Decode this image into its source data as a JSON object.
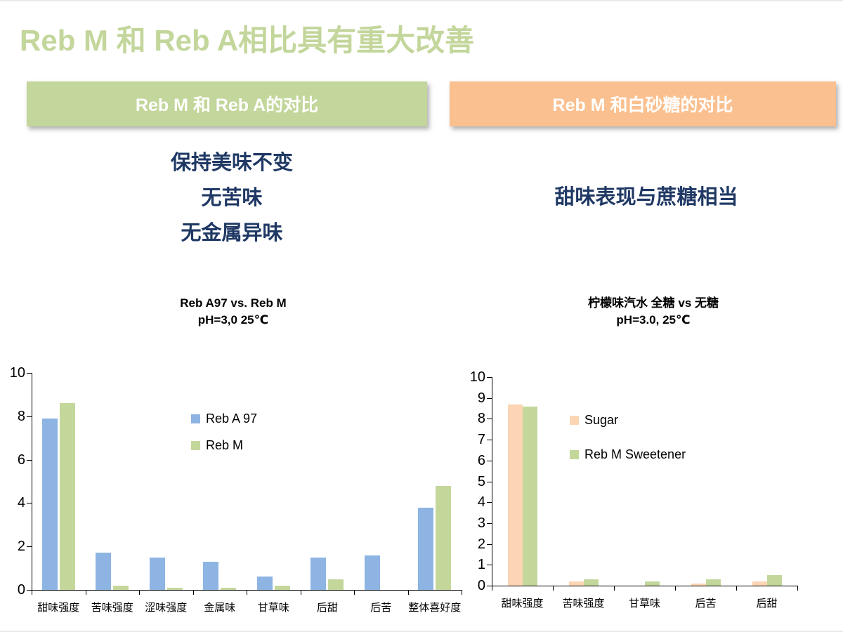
{
  "title": "Reb M 和 Reb A相比具有重大改善",
  "banners": [
    {
      "label": "Reb M 和 Reb A的对比",
      "color": "#c3d69b"
    },
    {
      "label": "Reb M 和白砂糖的对比",
      "color": "#fac090"
    }
  ],
  "left_points": [
    "保持美味不变",
    "无苦味",
    "无金属异味"
  ],
  "right_point": "甜味表现与蔗糖相当",
  "colors": {
    "title_green": "#c3d69b",
    "navy_text": "#1f3864",
    "bar_blue": "#8db4e2",
    "bar_green": "#c4d79b",
    "bar_peach": "#fcd5b4"
  },
  "chart_data": [
    {
      "type": "bar",
      "title": "Reb A97 vs. Reb M",
      "subtitle": "pH=3,0 25℃",
      "categories": [
        "甜味强度",
        "苦味强度",
        "涩味强度",
        "金属味",
        "甘草味",
        "后甜",
        "后苦",
        "整体喜好度"
      ],
      "series": [
        {
          "name": "Reb A 97",
          "color": "#8db4e2",
          "values": [
            7.9,
            1.7,
            1.5,
            1.3,
            0.6,
            1.5,
            1.6,
            3.8
          ]
        },
        {
          "name": "Reb M",
          "color": "#c4d79b",
          "values": [
            8.6,
            0.2,
            0.1,
            0.1,
            0.2,
            0.5,
            0,
            4.8
          ]
        }
      ],
      "ylim": [
        0,
        10
      ],
      "ytick_step": 2,
      "grid": false,
      "legend_position": "inside upper right"
    },
    {
      "type": "bar",
      "title": "柠檬味汽水  全糖 vs 无糖",
      "subtitle": "pH=3.0, 25℃",
      "categories": [
        "甜味强度",
        "苦味强度",
        "甘草味",
        "后苦",
        "后甜"
      ],
      "series": [
        {
          "name": "Sugar",
          "color": "#fcd5b4",
          "values": [
            8.7,
            0.2,
            0,
            0.1,
            0.2
          ]
        },
        {
          "name": "Reb M Sweetener",
          "color": "#c4d79b",
          "values": [
            8.6,
            0.3,
            0.2,
            0.3,
            0.5
          ]
        }
      ],
      "ylim": [
        0,
        10
      ],
      "ytick_step": 1,
      "grid": false,
      "legend_position": "inside upper right"
    }
  ]
}
